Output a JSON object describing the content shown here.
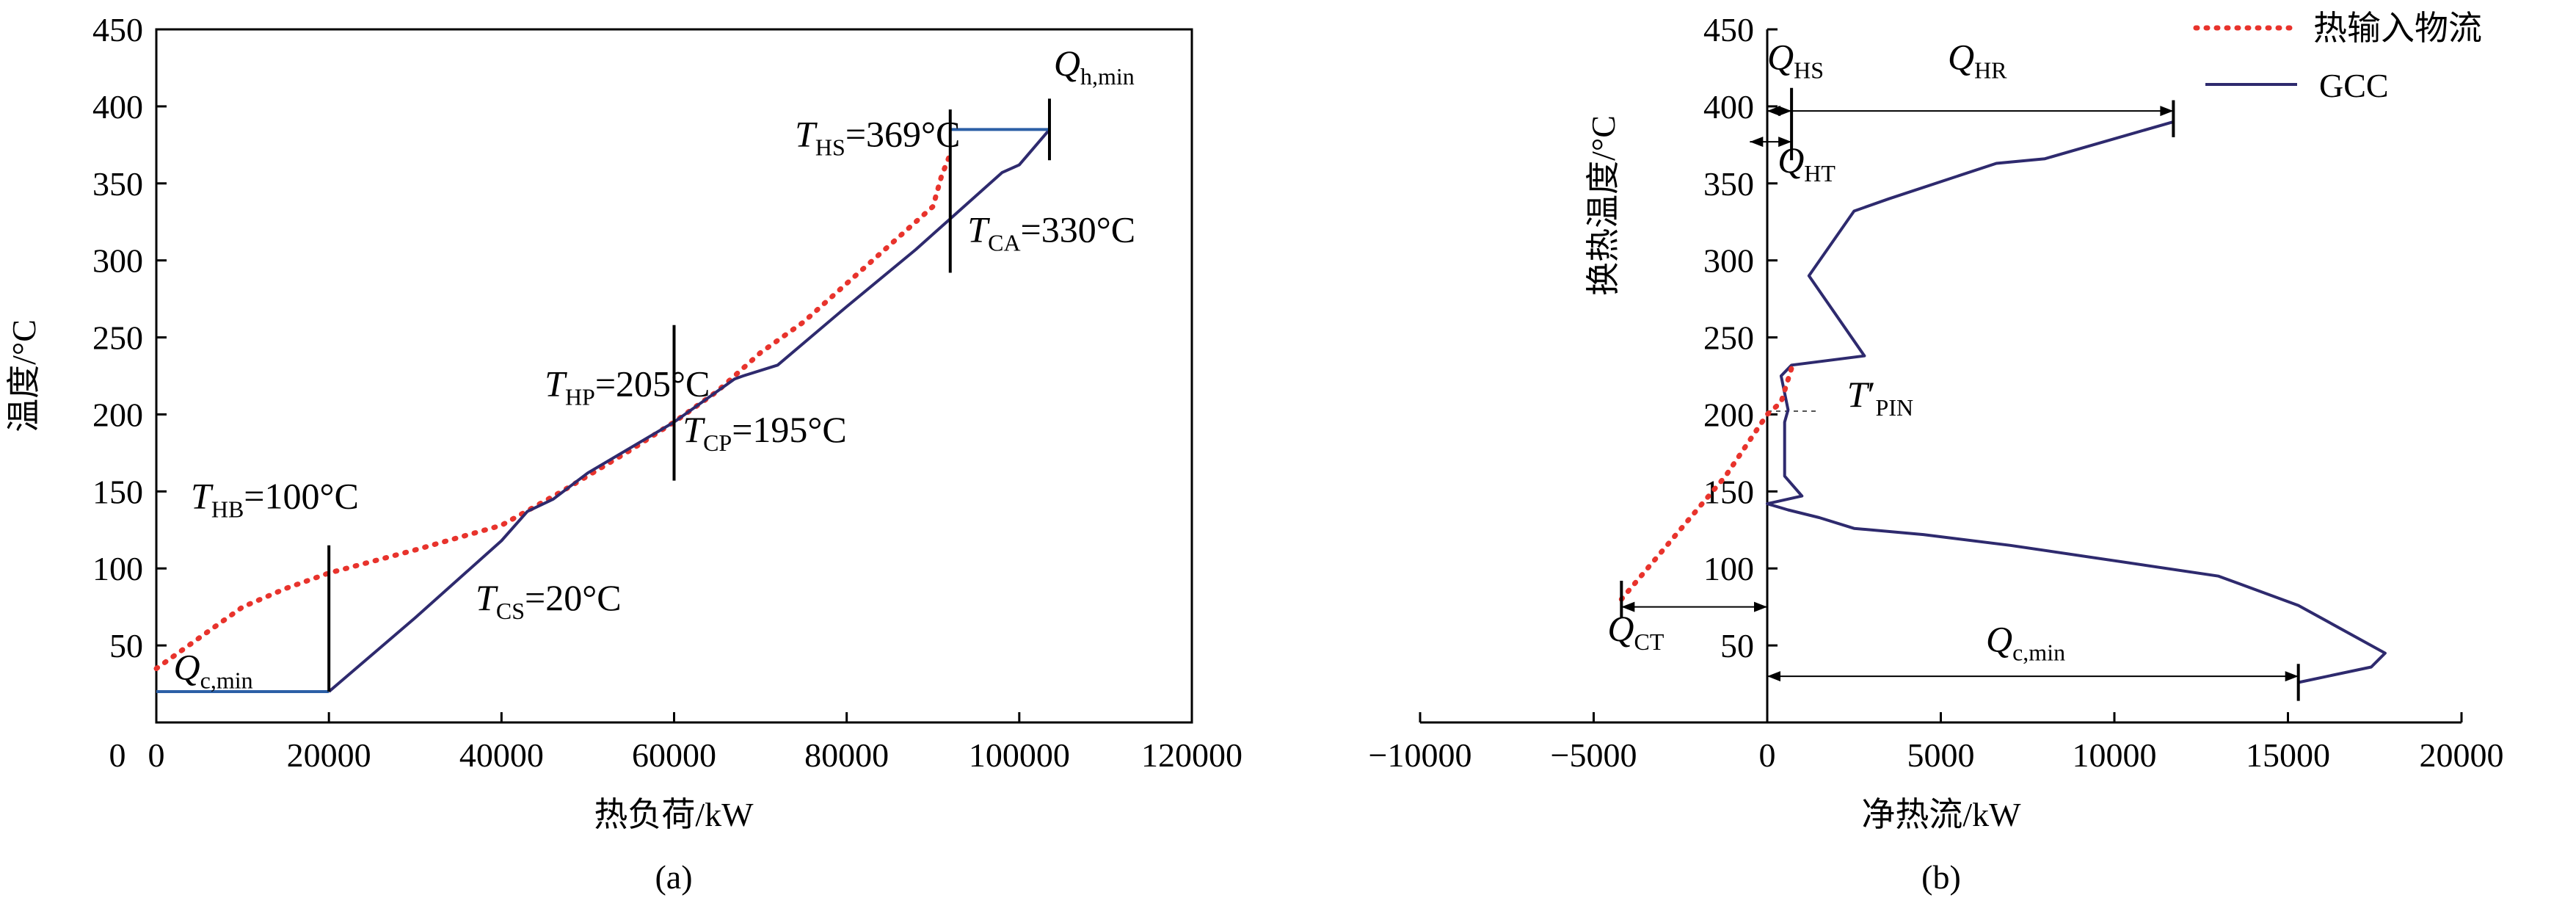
{
  "colors": {
    "curve": "#2e2a6e",
    "hot_stream": "#e8332c",
    "pinch_line": "#2c5fa6",
    "axis": "#000000"
  },
  "chart_data": [
    {
      "panel_label": "(a)",
      "type": "line",
      "xlabel": "热负荷/kW",
      "ylabel": "温度/°C",
      "xlim": [
        0,
        120000
      ],
      "ylim": [
        0,
        450
      ],
      "x_ticks": [
        "0",
        "20000",
        "40000",
        "60000",
        "80000",
        "100000",
        "120000"
      ],
      "y_ticks": [
        "50",
        "100",
        "150",
        "200",
        "250",
        "300",
        "350",
        "400",
        "450"
      ],
      "series": [
        {
          "style": "dotted-red",
          "points": [
            [
              0,
              35
            ],
            [
              5000,
              55
            ],
            [
              10000,
              75
            ],
            [
              15000,
              87
            ],
            [
              20000,
              97
            ],
            [
              30000,
              112
            ],
            [
              40000,
              128
            ],
            [
              47000,
              150
            ],
            [
              55000,
              177
            ],
            [
              60000,
              195
            ],
            [
              65000,
              215
            ],
            [
              70000,
              240
            ],
            [
              75000,
              260
            ],
            [
              80000,
              285
            ],
            [
              85000,
              310
            ],
            [
              90000,
              335
            ],
            [
              91000,
              355
            ],
            [
              92000,
              369
            ]
          ]
        },
        {
          "style": "solid-navy",
          "points": [
            [
              20000,
              20
            ],
            [
              30000,
              68
            ],
            [
              40000,
              118
            ],
            [
              43000,
              137
            ],
            [
              46000,
              145
            ],
            [
              50000,
              162
            ],
            [
              60000,
              195
            ],
            [
              67000,
              223
            ],
            [
              68000,
              225
            ],
            [
              72000,
              232
            ],
            [
              80000,
              270
            ],
            [
              88000,
              307
            ],
            [
              92000,
              327
            ],
            [
              98000,
              357
            ],
            [
              100000,
              362
            ],
            [
              103500,
              385
            ]
          ]
        },
        {
          "style": "solid-blue",
          "points": [
            [
              0,
              20
            ],
            [
              20000,
              20
            ]
          ]
        },
        {
          "style": "solid-blue",
          "points": [
            [
              92000,
              385
            ],
            [
              103500,
              385
            ]
          ]
        }
      ],
      "markers": [
        {
          "x": 20000,
          "y_range": [
            20,
            115
          ]
        },
        {
          "x": 60000,
          "y_range": [
            157,
            258
          ]
        },
        {
          "x": 92000,
          "y_range": [
            292,
            398
          ]
        },
        {
          "x": 103500,
          "y_range": [
            365,
            405
          ]
        }
      ],
      "annotations": [
        {
          "main": "Q",
          "sub": "h,min",
          "rest": "",
          "at": [
            104000,
            420
          ]
        },
        {
          "main": "T",
          "sub": "HS",
          "rest": "=369°C",
          "at": [
            74000,
            374
          ]
        },
        {
          "main": "T",
          "sub": "CA",
          "rest": "=330°C",
          "at": [
            94000,
            312
          ]
        },
        {
          "main": "T",
          "sub": "HP",
          "rest": "=205°C",
          "at": [
            45000,
            212
          ]
        },
        {
          "main": "T",
          "sub": "CP",
          "rest": "=195°C",
          "at": [
            61000,
            182
          ]
        },
        {
          "main": "T",
          "sub": "HB",
          "rest": "=100°C",
          "at": [
            4000,
            139
          ]
        },
        {
          "main": "T",
          "sub": "CS",
          "rest": "=20°C",
          "at": [
            37000,
            73
          ]
        },
        {
          "main": "Q",
          "sub": "c,min",
          "rest": "",
          "at": [
            2000,
            28
          ]
        }
      ]
    },
    {
      "panel_label": "(b)",
      "type": "line",
      "xlabel": "净热流/kW",
      "ylabel": "换热温度/°C",
      "xlim": [
        -10000,
        20000
      ],
      "ylim": [
        0,
        450
      ],
      "x_ticks": [
        "−10000",
        "−5000",
        "0",
        "5000",
        "10000",
        "15000",
        "20000"
      ],
      "y_ticks": [
        "50",
        "100",
        "150",
        "200",
        "250",
        "300",
        "350",
        "400",
        "450"
      ],
      "legend": {
        "position": "top-right",
        "entries": [
          {
            "style": "dotted-red",
            "label": "热输入物流"
          },
          {
            "style": "solid-navy",
            "label": "GCC"
          }
        ]
      },
      "series": [
        {
          "style": "solid-navy",
          "label": "GCC",
          "points": [
            [
              11700,
              390
            ],
            [
              8000,
              366
            ],
            [
              6600,
              363
            ],
            [
              3500,
              340
            ],
            [
              2500,
              332
            ],
            [
              1200,
              290
            ],
            [
              2800,
              238
            ],
            [
              700,
              232
            ],
            [
              400,
              225
            ],
            [
              600,
              203
            ],
            [
              500,
              195
            ],
            [
              500,
              160
            ],
            [
              1000,
              147
            ],
            [
              0,
              142
            ],
            [
              600,
              138
            ],
            [
              1500,
              133
            ],
            [
              2500,
              126
            ],
            [
              4500,
              122
            ],
            [
              7000,
              115
            ],
            [
              10000,
              105
            ],
            [
              13000,
              95
            ],
            [
              15300,
              76
            ],
            [
              17800,
              45
            ],
            [
              17400,
              36
            ],
            [
              15300,
              26
            ]
          ]
        },
        {
          "style": "dotted-red",
          "label": "热输入物流",
          "points": [
            [
              -4200,
              80
            ],
            [
              -1200,
              160
            ],
            [
              0,
              200
            ],
            [
              400,
              208
            ],
            [
              700,
              230
            ]
          ]
        }
      ],
      "markers": [
        {
          "x": 11700,
          "y_range": [
            380,
            404
          ]
        },
        {
          "x": 15300,
          "y_range": [
            14,
            38
          ]
        },
        {
          "x": -4200,
          "y_range": [
            68,
            92
          ]
        },
        {
          "x": 700,
          "y_range": [
            365,
            412
          ]
        }
      ],
      "arrows": [
        {
          "from": [
            0,
            397
          ],
          "to": [
            11700,
            397
          ]
        },
        {
          "from": [
            0,
            397
          ],
          "to": [
            700,
            397
          ]
        },
        {
          "from": [
            -500,
            377
          ],
          "to": [
            700,
            377
          ]
        },
        {
          "from": [
            -4200,
            75
          ],
          "to": [
            0,
            75
          ]
        },
        {
          "from": [
            0,
            30
          ],
          "to": [
            15300,
            30
          ]
        }
      ],
      "annotations": [
        {
          "main": "Q",
          "sub": "HS",
          "rest": "",
          "at": [
            0,
            424
          ]
        },
        {
          "main": "Q",
          "sub": "HR",
          "rest": "",
          "at": [
            5200,
            424
          ]
        },
        {
          "main": "Q",
          "sub": "HT",
          "rest": "",
          "at": [
            300,
            357
          ]
        },
        {
          "main": "T",
          "sub": "PIN",
          "rest": "′",
          "at": [
            2300,
            205
          ]
        },
        {
          "main": "Q",
          "sub": "CT",
          "rest": "",
          "at": [
            -4600,
            53
          ]
        },
        {
          "main": "Q",
          "sub": "c,min",
          "rest": "",
          "at": [
            6300,
            46
          ]
        }
      ]
    }
  ]
}
